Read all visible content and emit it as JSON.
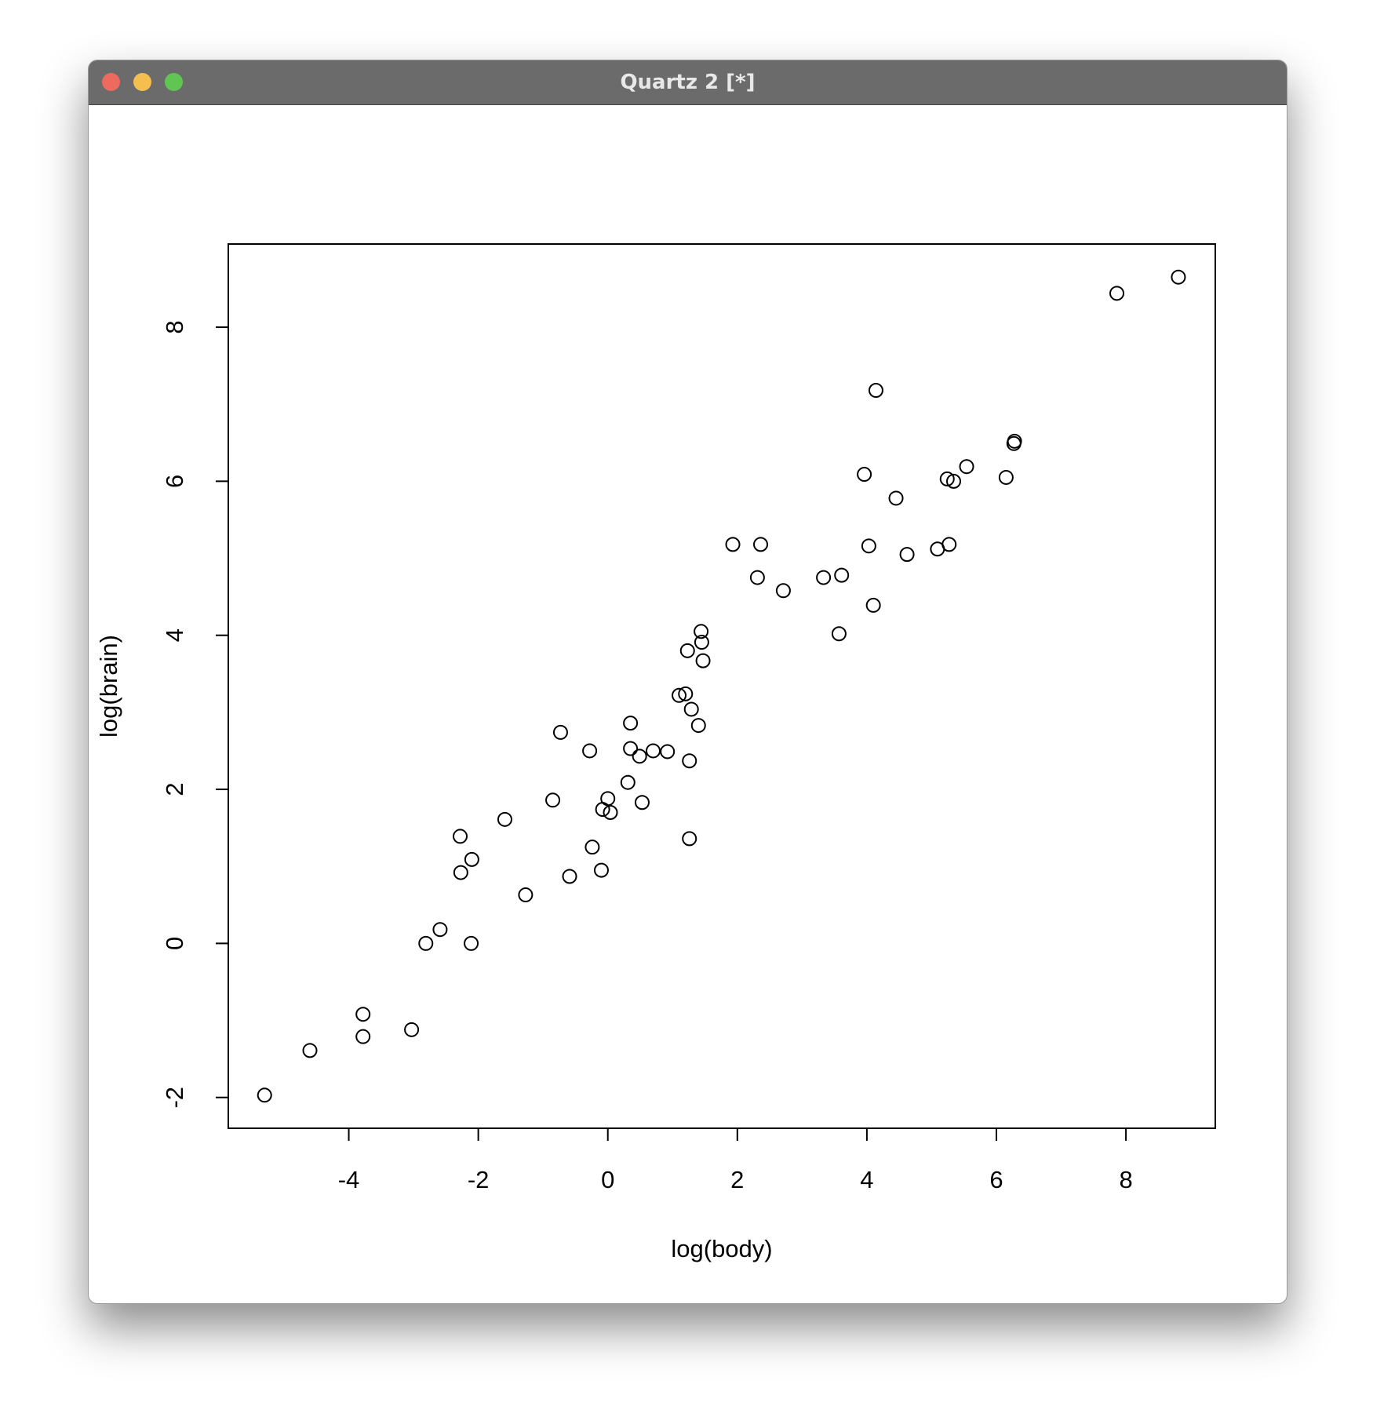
{
  "window": {
    "title": "Quartz 2 [*]"
  },
  "chart_data": {
    "type": "scatter",
    "xlabel": "log(body)",
    "ylabel": "log(brain)",
    "color": "#000000",
    "x": [
      -5.3,
      -4.6,
      -3.78,
      -3.78,
      -3.03,
      -2.81,
      -2.59,
      -2.11,
      -2.28,
      -2.27,
      -2.1,
      -1.59,
      -1.27,
      -0.85,
      -0.73,
      -0.59,
      -0.28,
      -0.24,
      -0.1,
      -0.08,
      0.0,
      0.04,
      0.31,
      0.35,
      0.35,
      0.49,
      0.53,
      0.7,
      0.92,
      1.1,
      1.2,
      1.23,
      1.26,
      1.26,
      1.29,
      1.4,
      1.44,
      1.45,
      1.47,
      1.93,
      2.31,
      2.36,
      2.71,
      3.33,
      3.57,
      3.61,
      3.96,
      4.03,
      4.1,
      4.14,
      4.45,
      4.62,
      5.09,
      5.24,
      5.27,
      5.34,
      5.54,
      6.15,
      6.27,
      6.28,
      7.86,
      8.81
    ],
    "values": [
      -1.97,
      -1.39,
      -0.92,
      -1.21,
      -1.12,
      0.0,
      0.18,
      0.0,
      1.39,
      0.92,
      1.09,
      1.61,
      0.63,
      1.86,
      2.74,
      0.87,
      2.5,
      1.25,
      0.95,
      1.74,
      1.88,
      1.7,
      2.09,
      2.86,
      2.53,
      2.43,
      1.83,
      2.5,
      2.49,
      3.22,
      3.24,
      3.8,
      2.37,
      1.36,
      3.04,
      2.83,
      4.05,
      3.91,
      3.67,
      5.18,
      4.75,
      5.18,
      4.58,
      4.75,
      4.02,
      4.78,
      6.09,
      5.16,
      4.39,
      7.18,
      5.78,
      5.05,
      5.12,
      6.03,
      5.18,
      6.0,
      6.19,
      6.05,
      6.49,
      6.52,
      8.44,
      8.65
    ],
    "xlim": [
      -5.86,
      9.38
    ],
    "ylim": [
      -2.4,
      9.08
    ],
    "xticks": [
      -4,
      -2,
      0,
      2,
      4,
      6,
      8
    ],
    "yticks": [
      -2,
      0,
      2,
      4,
      6,
      8
    ]
  }
}
